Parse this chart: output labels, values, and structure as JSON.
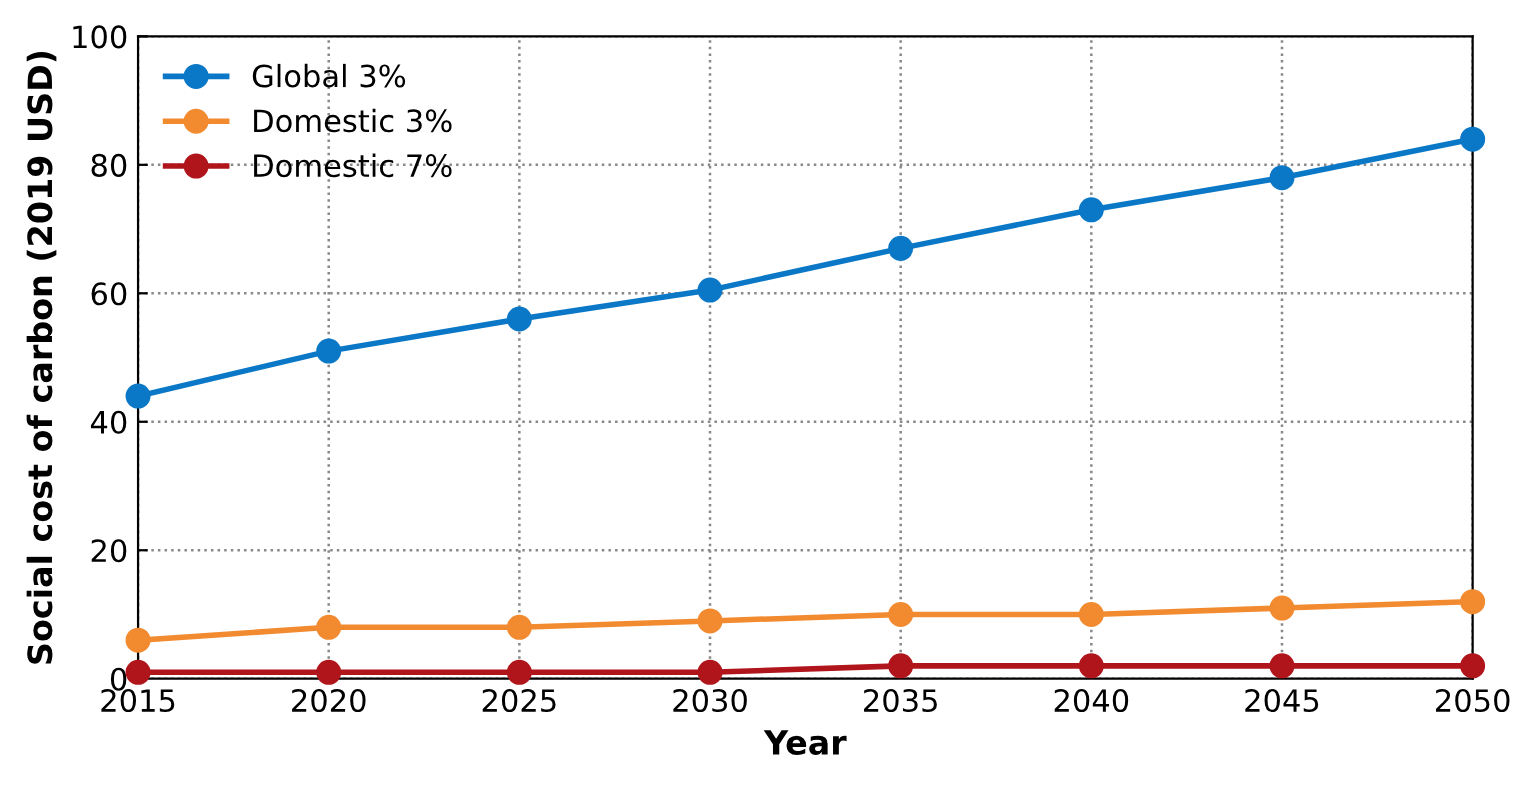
{
  "chart_data": {
    "type": "line",
    "xlabel": "Year",
    "ylabel": "Social cost of carbon (2019 USD)",
    "x": [
      2015,
      2020,
      2025,
      2030,
      2035,
      2040,
      2045,
      2050
    ],
    "series": [
      {
        "name": "Global 3%",
        "color": "#0a78c6",
        "values": [
          44,
          51,
          56,
          60.5,
          67,
          73,
          78,
          84
        ]
      },
      {
        "name": "Domestic 3%",
        "color": "#f28a30",
        "values": [
          6,
          8,
          8,
          9,
          10,
          10,
          11,
          12
        ]
      },
      {
        "name": "Domestic 7%",
        "color": "#b0151c",
        "values": [
          1,
          1,
          1,
          1,
          2,
          2,
          2,
          2
        ]
      }
    ],
    "xlim": [
      2015,
      2050
    ],
    "xticks": [
      2015,
      2020,
      2025,
      2030,
      2035,
      2040,
      2045,
      2050
    ],
    "ylim": [
      0,
      100
    ],
    "yticks": [
      0,
      20,
      40,
      60,
      80,
      100
    ],
    "grid": true,
    "legend": "top left",
    "marker": "circle",
    "line_style": "solid"
  }
}
